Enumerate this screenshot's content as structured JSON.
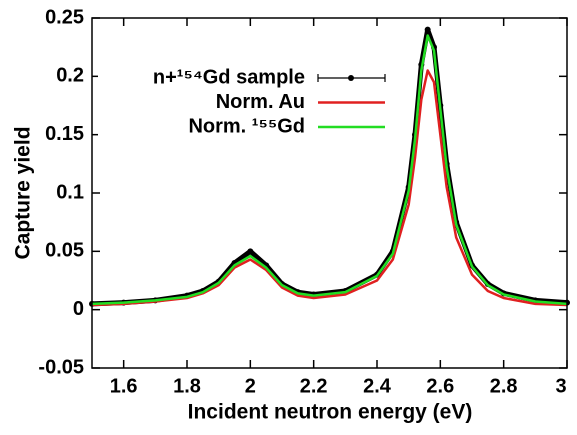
{
  "chart_data": {
    "type": "line",
    "xlabel": "Incident neutron energy (eV)",
    "ylabel": "Capture yield",
    "x": [
      1.5,
      1.6,
      1.7,
      1.8,
      1.85,
      1.9,
      1.95,
      2.0,
      2.05,
      2.1,
      2.15,
      2.2,
      2.3,
      2.4,
      2.45,
      2.5,
      2.52,
      2.54,
      2.56,
      2.58,
      2.6,
      2.62,
      2.65,
      2.7,
      2.75,
      2.8,
      2.9,
      3.0
    ],
    "series": [
      {
        "name": "n+¹⁵⁴Gd sample",
        "color": "#000000",
        "markers": true,
        "values": [
          0.005,
          0.006,
          0.008,
          0.012,
          0.016,
          0.024,
          0.04,
          0.05,
          0.038,
          0.022,
          0.015,
          0.013,
          0.016,
          0.03,
          0.05,
          0.105,
          0.15,
          0.21,
          0.24,
          0.225,
          0.175,
          0.125,
          0.075,
          0.038,
          0.022,
          0.014,
          0.008,
          0.006
        ]
      },
      {
        "name": "Norm. Au",
        "color": "#e02020",
        "values": [
          0.004,
          0.005,
          0.007,
          0.01,
          0.014,
          0.021,
          0.036,
          0.043,
          0.034,
          0.019,
          0.012,
          0.01,
          0.013,
          0.025,
          0.043,
          0.09,
          0.13,
          0.18,
          0.205,
          0.195,
          0.15,
          0.105,
          0.062,
          0.03,
          0.016,
          0.01,
          0.005,
          0.004
        ]
      },
      {
        "name": "Norm. ¹⁵⁵Gd",
        "color": "#22dd22",
        "values": [
          0.005,
          0.006,
          0.008,
          0.011,
          0.015,
          0.023,
          0.038,
          0.046,
          0.036,
          0.021,
          0.014,
          0.012,
          0.015,
          0.029,
          0.048,
          0.102,
          0.146,
          0.205,
          0.235,
          0.222,
          0.172,
          0.122,
          0.073,
          0.037,
          0.021,
          0.013,
          0.007,
          0.005
        ]
      }
    ],
    "xlim": [
      1.5,
      3.0
    ],
    "xticks": [
      1.6,
      1.8,
      2,
      2.2,
      2.4,
      2.6,
      2.8,
      3
    ],
    "ylim": [
      -0.05,
      0.25
    ],
    "yticks": [
      -0.05,
      0,
      0.05,
      0.1,
      0.15,
      0.2,
      0.25
    ],
    "legend": "upper left"
  }
}
